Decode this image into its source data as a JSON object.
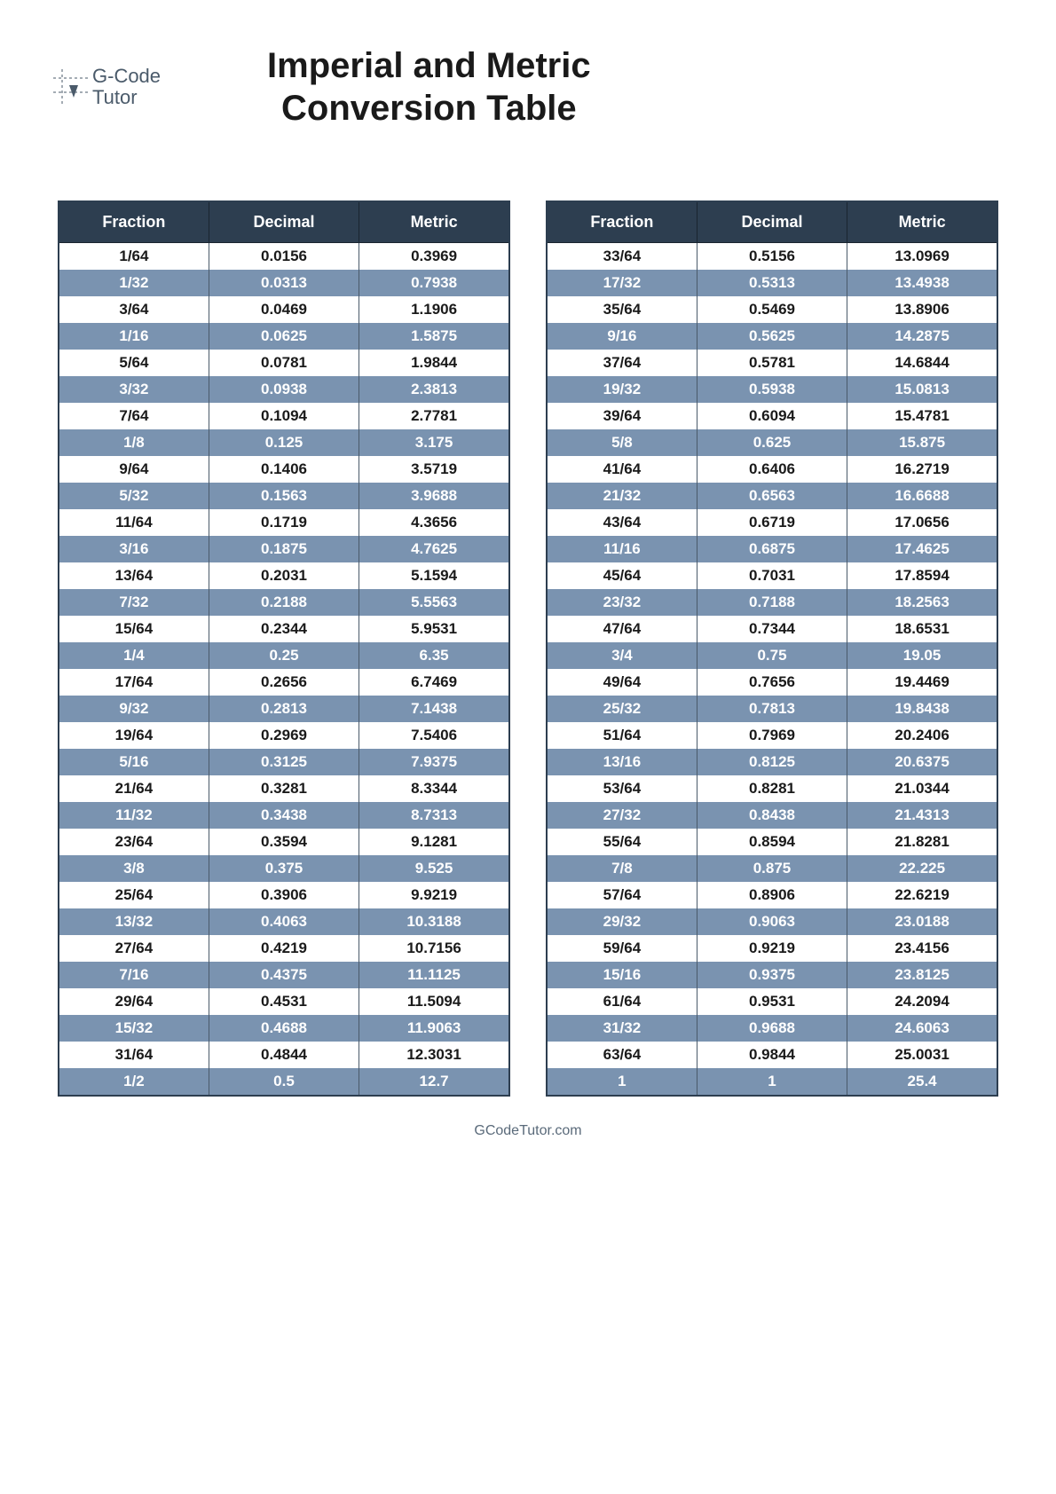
{
  "logo": {
    "line1": "G-Code",
    "line2": "Tutor"
  },
  "title_line1": "Imperial and Metric",
  "title_line2": "Conversion Table",
  "footer": "GCodeTutor.com",
  "columns": [
    "Fraction",
    "Decimal",
    "Metric"
  ],
  "table_style": {
    "header_bg": "#2d3e50",
    "header_color": "#ffffff",
    "row_odd_bg": "#ffffff",
    "row_odd_color": "#1a1a1a",
    "row_even_bg": "#7a93b0",
    "row_even_color": "#ffffff",
    "border_color": "#2d3e50",
    "font_size_header": 18,
    "font_size_cell": 17,
    "font_weight": 700
  },
  "left_rows": [
    [
      "1/64",
      "0.0156",
      "0.3969"
    ],
    [
      "1/32",
      "0.0313",
      "0.7938"
    ],
    [
      "3/64",
      "0.0469",
      "1.1906"
    ],
    [
      "1/16",
      "0.0625",
      "1.5875"
    ],
    [
      "5/64",
      "0.0781",
      "1.9844"
    ],
    [
      "3/32",
      "0.0938",
      "2.3813"
    ],
    [
      "7/64",
      "0.1094",
      "2.7781"
    ],
    [
      "1/8",
      "0.125",
      "3.175"
    ],
    [
      "9/64",
      "0.1406",
      "3.5719"
    ],
    [
      "5/32",
      "0.1563",
      "3.9688"
    ],
    [
      "11/64",
      "0.1719",
      "4.3656"
    ],
    [
      "3/16",
      "0.1875",
      "4.7625"
    ],
    [
      "13/64",
      "0.2031",
      "5.1594"
    ],
    [
      "7/32",
      "0.2188",
      "5.5563"
    ],
    [
      "15/64",
      "0.2344",
      "5.9531"
    ],
    [
      "1/4",
      "0.25",
      "6.35"
    ],
    [
      "17/64",
      "0.2656",
      "6.7469"
    ],
    [
      "9/32",
      "0.2813",
      "7.1438"
    ],
    [
      "19/64",
      "0.2969",
      "7.5406"
    ],
    [
      "5/16",
      "0.3125",
      "7.9375"
    ],
    [
      "21/64",
      "0.3281",
      "8.3344"
    ],
    [
      "11/32",
      "0.3438",
      "8.7313"
    ],
    [
      "23/64",
      "0.3594",
      "9.1281"
    ],
    [
      "3/8",
      "0.375",
      "9.525"
    ],
    [
      "25/64",
      "0.3906",
      "9.9219"
    ],
    [
      "13/32",
      "0.4063",
      "10.3188"
    ],
    [
      "27/64",
      "0.4219",
      "10.7156"
    ],
    [
      "7/16",
      "0.4375",
      "11.1125"
    ],
    [
      "29/64",
      "0.4531",
      "11.5094"
    ],
    [
      "15/32",
      "0.4688",
      "11.9063"
    ],
    [
      "31/64",
      "0.4844",
      "12.3031"
    ],
    [
      "1/2",
      "0.5",
      "12.7"
    ]
  ],
  "right_rows": [
    [
      "33/64",
      "0.5156",
      "13.0969"
    ],
    [
      "17/32",
      "0.5313",
      "13.4938"
    ],
    [
      "35/64",
      "0.5469",
      "13.8906"
    ],
    [
      "9/16",
      "0.5625",
      "14.2875"
    ],
    [
      "37/64",
      "0.5781",
      "14.6844"
    ],
    [
      "19/32",
      "0.5938",
      "15.0813"
    ],
    [
      "39/64",
      "0.6094",
      "15.4781"
    ],
    [
      "5/8",
      "0.625",
      "15.875"
    ],
    [
      "41/64",
      "0.6406",
      "16.2719"
    ],
    [
      "21/32",
      "0.6563",
      "16.6688"
    ],
    [
      "43/64",
      "0.6719",
      "17.0656"
    ],
    [
      "11/16",
      "0.6875",
      "17.4625"
    ],
    [
      "45/64",
      "0.7031",
      "17.8594"
    ],
    [
      "23/32",
      "0.7188",
      "18.2563"
    ],
    [
      "47/64",
      "0.7344",
      "18.6531"
    ],
    [
      "3/4",
      "0.75",
      "19.05"
    ],
    [
      "49/64",
      "0.7656",
      "19.4469"
    ],
    [
      "25/32",
      "0.7813",
      "19.8438"
    ],
    [
      "51/64",
      "0.7969",
      "20.2406"
    ],
    [
      "13/16",
      "0.8125",
      "20.6375"
    ],
    [
      "53/64",
      "0.8281",
      "21.0344"
    ],
    [
      "27/32",
      "0.8438",
      "21.4313"
    ],
    [
      "55/64",
      "0.8594",
      "21.8281"
    ],
    [
      "7/8",
      "0.875",
      "22.225"
    ],
    [
      "57/64",
      "0.8906",
      "22.6219"
    ],
    [
      "29/32",
      "0.9063",
      "23.0188"
    ],
    [
      "59/64",
      "0.9219",
      "23.4156"
    ],
    [
      "15/16",
      "0.9375",
      "23.8125"
    ],
    [
      "61/64",
      "0.9531",
      "24.2094"
    ],
    [
      "31/32",
      "0.9688",
      "24.6063"
    ],
    [
      "63/64",
      "0.9844",
      "25.0031"
    ],
    [
      "1",
      "1",
      "25.4"
    ]
  ]
}
